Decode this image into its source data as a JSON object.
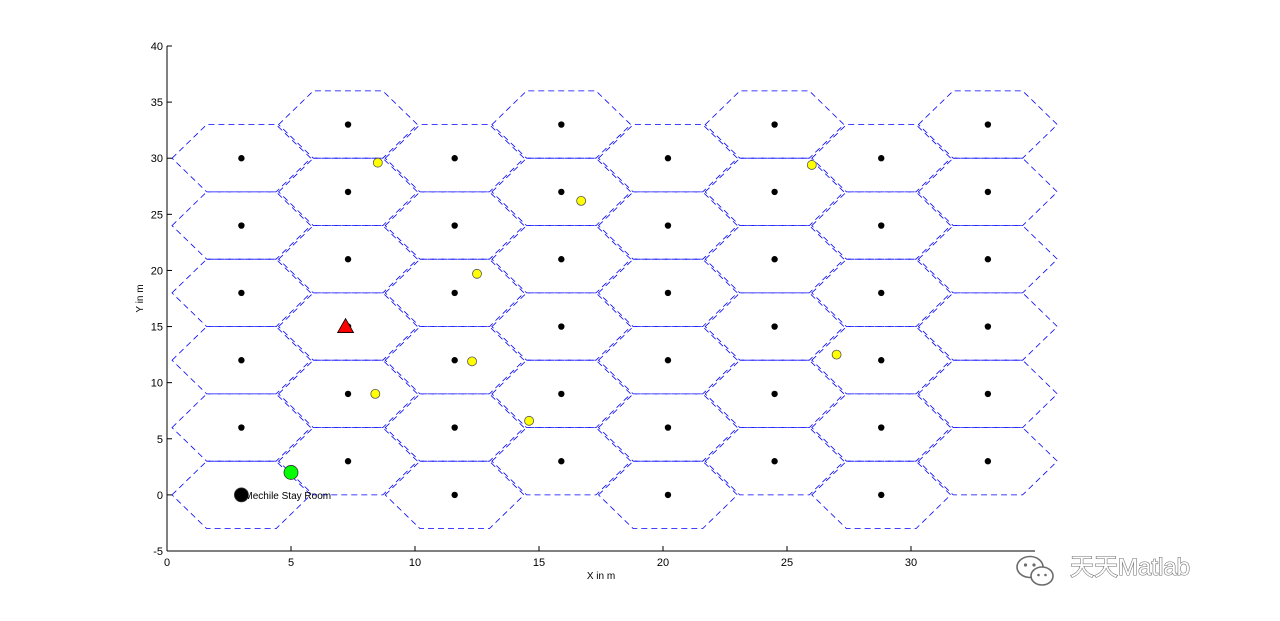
{
  "chart_data": {
    "type": "scatter",
    "title": "",
    "xlabel": "X in m",
    "ylabel": "Y in m",
    "xlim": [
      0,
      35
    ],
    "ylim": [
      -5,
      40
    ],
    "x_ticks": [
      0,
      5,
      10,
      15,
      20,
      25,
      30
    ],
    "y_ticks": [
      -5,
      0,
      5,
      10,
      15,
      20,
      25,
      30,
      35,
      40
    ],
    "grid": false,
    "hex_grid": {
      "line_color": "#0000ff",
      "line_style": "dashed",
      "columns": [
        {
          "x": 3.0,
          "y": [
            0,
            6,
            12,
            18,
            24,
            30
          ]
        },
        {
          "x": 7.3,
          "y": [
            3,
            9,
            15,
            21,
            27,
            33
          ]
        },
        {
          "x": 11.6,
          "y": [
            0,
            6,
            12,
            18,
            24,
            30
          ]
        },
        {
          "x": 15.9,
          "y": [
            3,
            9,
            15,
            21,
            27,
            33
          ]
        },
        {
          "x": 20.2,
          "y": [
            0,
            6,
            12,
            18,
            24,
            30
          ]
        },
        {
          "x": 24.5,
          "y": [
            3,
            9,
            15,
            21,
            27,
            33
          ]
        },
        {
          "x": 28.8,
          "y": [
            0,
            6,
            12,
            18,
            24,
            30
          ]
        },
        {
          "x": 33.1,
          "y": [
            3,
            9,
            15,
            21,
            27,
            33
          ]
        }
      ]
    },
    "series": [
      {
        "marker": "dot",
        "color": "#000000",
        "points": [
          [
            3.0,
            6
          ],
          [
            3.0,
            12
          ],
          [
            3.0,
            18
          ],
          [
            3.0,
            24
          ],
          [
            3.0,
            30
          ],
          [
            7.3,
            3
          ],
          [
            7.3,
            9
          ],
          [
            7.3,
            15
          ],
          [
            7.3,
            21
          ],
          [
            7.3,
            27
          ],
          [
            7.3,
            33
          ],
          [
            11.6,
            0
          ],
          [
            11.6,
            6
          ],
          [
            11.6,
            12
          ],
          [
            11.6,
            18
          ],
          [
            11.6,
            24
          ],
          [
            11.6,
            30
          ],
          [
            15.9,
            3
          ],
          [
            15.9,
            9
          ],
          [
            15.9,
            15
          ],
          [
            15.9,
            21
          ],
          [
            15.9,
            27
          ],
          [
            15.9,
            33
          ],
          [
            20.2,
            0
          ],
          [
            20.2,
            6
          ],
          [
            20.2,
            12
          ],
          [
            20.2,
            18
          ],
          [
            20.2,
            24
          ],
          [
            20.2,
            30
          ],
          [
            24.5,
            3
          ],
          [
            24.5,
            9
          ],
          [
            24.5,
            15
          ],
          [
            24.5,
            21
          ],
          [
            24.5,
            27
          ],
          [
            24.5,
            33
          ],
          [
            28.8,
            0
          ],
          [
            28.8,
            6
          ],
          [
            28.8,
            12
          ],
          [
            28.8,
            18
          ],
          [
            28.8,
            24
          ],
          [
            28.8,
            30
          ],
          [
            33.1,
            3
          ],
          [
            33.1,
            9
          ],
          [
            33.1,
            15
          ],
          [
            33.1,
            21
          ],
          [
            33.1,
            27
          ],
          [
            33.1,
            33
          ]
        ]
      },
      {
        "marker": "circle",
        "color": "#ffff00",
        "points": [
          [
            8.5,
            29.6
          ],
          [
            16.7,
            26.2
          ],
          [
            26.0,
            29.4
          ],
          [
            12.5,
            19.7
          ],
          [
            12.3,
            11.9
          ],
          [
            8.4,
            9.0
          ],
          [
            14.6,
            6.6
          ],
          [
            27.0,
            12.5
          ]
        ]
      },
      {
        "marker": "triangle",
        "color": "#ff0000",
        "points": [
          [
            7.2,
            15.0
          ]
        ]
      },
      {
        "marker": "circle-large",
        "color": "#00ff00",
        "points": [
          [
            5.0,
            2.0
          ]
        ]
      },
      {
        "marker": "circle-large",
        "color": "#000000",
        "points": [
          [
            3.0,
            0.0
          ]
        ]
      }
    ],
    "annotations": [
      {
        "text": "Mechile Stay Room",
        "x": 3.0,
        "y": 0.0
      }
    ]
  },
  "watermark": {
    "text": "天天Matlab",
    "icon": "wechat-icon"
  }
}
